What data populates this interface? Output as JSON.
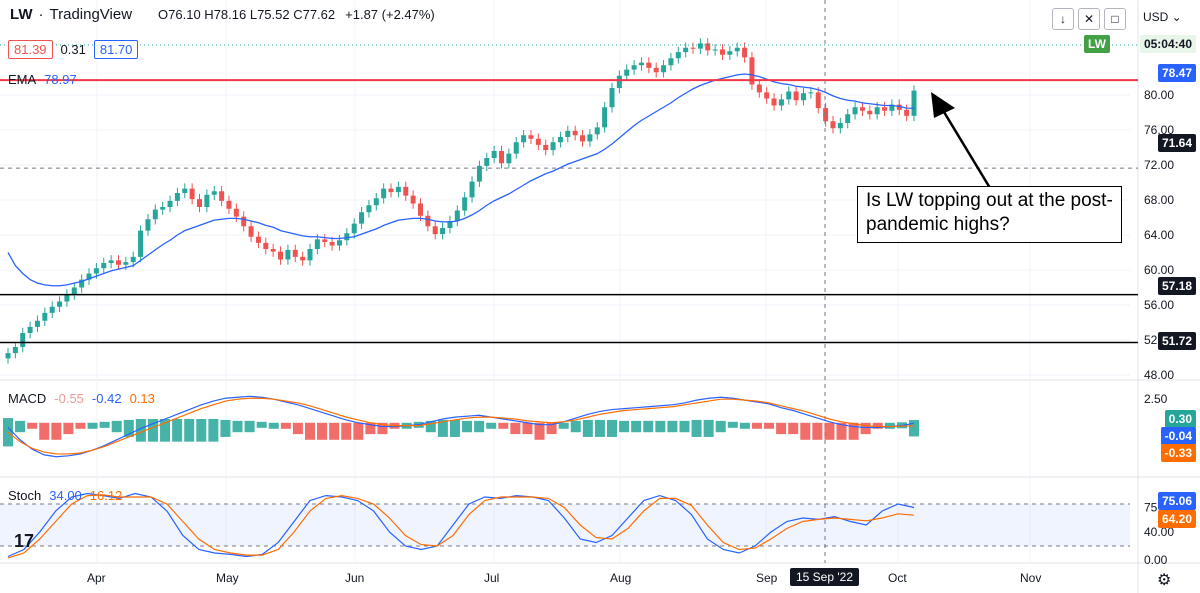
{
  "header": {
    "symbol": "LW",
    "source": "TradingView",
    "ohlc": "O76.10 H78.16 L75.52 C77.62",
    "change": "+1.87 (+2.47%)",
    "bid": "81.39",
    "spread": "0.31",
    "ask": "81.70"
  },
  "ema_label": "EMA",
  "ema_value": "78.97",
  "macd_label": "MACD",
  "macd_vals": [
    "-0.55",
    "-0.42",
    "0.13"
  ],
  "stoch_label": "Stoch",
  "stoch_vals": [
    "34.00",
    "16.12"
  ],
  "currency": "USD",
  "callout": "Is LW topping out at the post-pandemic highs?",
  "tags": {
    "lw_label": "LW",
    "lw_time": "05:04:40",
    "ema_tag": "78.47",
    "crosshair_price": "71.64",
    "support1": "57.18",
    "support2": "51.72",
    "macd_hist": "0.30",
    "macd_line": "-0.04",
    "macd_signal": "-0.33",
    "stoch_k": "75.06",
    "stoch_d": "64.20",
    "crosshair_date": "15 Sep '22"
  },
  "icons": [
    "arrow-down-icon",
    "collapse-icon",
    "fullscreen-icon",
    "settings-icon",
    "tradingview-logo-icon"
  ],
  "colors": {
    "up": "#26a69a",
    "down": "#ef5350",
    "ema": "#2962ff",
    "macd": "#2962ff",
    "signal": "#ff6d00",
    "resistance": "#f23645"
  },
  "chart_data": [
    {
      "type": "candlestick",
      "title": "LW",
      "ylabel": "USD",
      "ylim": [
        48,
        88
      ],
      "y_ticks": [
        48.0,
        52.0,
        56.0,
        60.0,
        64.0,
        68.0,
        72.0,
        76.0,
        80.0
      ],
      "x_ticks": [
        "Apr",
        "May",
        "Jun",
        "Jul",
        "Aug",
        "Sep",
        "Oct",
        "Nov"
      ],
      "horizontal_lines": [
        81.7,
        57.18,
        51.72
      ],
      "last_close": 77.62,
      "ema_last": 78.47,
      "closes": [
        50.5,
        51.2,
        52.8,
        53.5,
        54.2,
        55.1,
        55.8,
        56.4,
        57.2,
        58.0,
        58.9,
        59.6,
        60.2,
        60.8,
        61.1,
        60.6,
        60.9,
        61.5,
        64.5,
        65.8,
        66.9,
        67.2,
        67.9,
        68.8,
        69.3,
        68.1,
        67.2,
        68.6,
        69.0,
        67.9,
        67.0,
        66.1,
        65.0,
        63.8,
        63.1,
        62.4,
        62.1,
        61.2,
        62.3,
        61.5,
        61.1,
        62.4,
        63.5,
        63.2,
        62.8,
        63.4,
        64.2,
        65.3,
        66.6,
        67.4,
        68.2,
        69.3,
        68.9,
        69.5,
        68.5,
        67.6,
        66.2,
        65.0,
        64.1,
        64.8,
        65.6,
        66.8,
        68.3,
        70.1,
        71.9,
        72.8,
        73.6,
        72.2,
        73.3,
        74.6,
        75.4,
        75.0,
        74.3,
        73.7,
        74.6,
        75.2,
        75.9,
        75.4,
        74.7,
        75.5,
        76.3,
        78.6,
        80.8,
        82.2,
        82.9,
        83.4,
        83.7,
        83.1,
        82.6,
        83.4,
        84.2,
        84.9,
        85.4,
        85.3,
        85.9,
        85.1,
        85.2,
        84.6,
        85.0,
        85.4,
        84.3,
        81.2,
        80.3,
        79.6,
        78.8,
        79.5,
        80.4,
        79.4,
        80.2,
        80.3,
        78.5,
        77.0,
        76.2,
        76.8,
        77.8,
        78.6,
        78.2,
        77.8,
        78.6,
        78.2,
        78.9,
        78.3,
        77.62,
        80.5
      ],
      "ema": [
        62.0,
        60.5,
        59.6,
        58.9,
        58.5,
        58.3,
        58.2,
        58.2,
        58.3,
        58.5,
        58.7,
        59.0,
        59.3,
        59.6,
        59.9,
        60.1,
        60.3,
        60.5,
        61.1,
        61.7,
        62.3,
        62.9,
        63.4,
        64.0,
        64.5,
        64.8,
        65.1,
        65.4,
        65.7,
        65.8,
        65.9,
        65.9,
        65.8,
        65.6,
        65.4,
        65.1,
        64.9,
        64.5,
        64.3,
        64.1,
        63.9,
        63.8,
        63.8,
        63.7,
        63.6,
        63.6,
        63.7,
        63.8,
        64.1,
        64.4,
        64.7,
        65.1,
        65.4,
        65.7,
        65.8,
        65.9,
        65.9,
        65.8,
        65.6,
        65.5,
        65.5,
        65.6,
        65.9,
        66.3,
        66.8,
        67.4,
        67.9,
        68.3,
        68.7,
        69.2,
        69.7,
        70.2,
        70.6,
        71.0,
        71.3,
        71.7,
        72.1,
        72.4,
        72.7,
        73.0,
        73.3,
        73.8,
        74.4,
        75.1,
        75.8,
        76.5,
        77.1,
        77.6,
        78.1,
        78.6,
        79.1,
        79.7,
        80.2,
        80.7,
        81.1,
        81.4,
        81.7,
        81.9,
        82.1,
        82.3,
        82.4,
        82.3,
        82.1,
        81.8,
        81.5,
        81.3,
        81.2,
        81.0,
        80.9,
        80.8,
        80.6,
        80.3,
        79.9,
        79.6,
        79.4,
        79.3,
        79.1,
        79.0,
        78.9,
        78.8,
        78.8,
        78.7,
        78.5,
        78.47
      ]
    },
    {
      "type": "line",
      "title": "MACD",
      "ylim": [
        -5,
        4
      ],
      "y_ticks": [
        2.5
      ],
      "series": [
        {
          "name": "MACD",
          "values": [
            -0.5,
            -1.8,
            -2.8,
            -3.4,
            -3.6,
            -3.5,
            -3.3,
            -2.9,
            -2.4,
            -1.8,
            -1.2,
            -0.6,
            -0.1,
            0.4,
            0.9,
            1.4,
            1.9,
            2.3,
            2.6,
            2.7,
            2.8,
            2.7,
            2.5,
            2.2,
            1.9,
            1.5,
            1.1,
            0.7,
            0.3,
            0.0,
            -0.2,
            -0.4,
            -0.4,
            -0.3,
            -0.2,
            0.1,
            0.4,
            0.6,
            0.7,
            0.8,
            0.6,
            0.4,
            0.2,
            0.0,
            -0.2,
            -0.2,
            0.1,
            0.5,
            0.9,
            1.2,
            1.4,
            1.5,
            1.6,
            1.7,
            1.8,
            1.9,
            2.1,
            2.4,
            2.6,
            2.7,
            2.6,
            2.4,
            2.2,
            2.0,
            1.6,
            1.3,
            0.9,
            0.5,
            0.1,
            -0.2,
            -0.4,
            -0.5,
            -0.5,
            -0.4,
            -0.3,
            -0.04
          ]
        },
        {
          "name": "Signal",
          "values": [
            -1.0,
            -2.0,
            -2.7,
            -3.1,
            -3.3,
            -3.3,
            -3.2,
            -2.9,
            -2.5,
            -2.0,
            -1.5,
            -1.0,
            -0.5,
            0.0,
            0.5,
            1.0,
            1.5,
            1.9,
            2.3,
            2.5,
            2.6,
            2.6,
            2.5,
            2.3,
            2.1,
            1.8,
            1.4,
            1.0,
            0.6,
            0.3,
            0.0,
            -0.2,
            -0.3,
            -0.3,
            -0.3,
            -0.1,
            0.1,
            0.3,
            0.5,
            0.6,
            0.6,
            0.5,
            0.4,
            0.2,
            0.1,
            0.0,
            0.1,
            0.3,
            0.6,
            0.9,
            1.1,
            1.3,
            1.4,
            1.5,
            1.6,
            1.7,
            1.9,
            2.1,
            2.3,
            2.5,
            2.5,
            2.4,
            2.3,
            2.1,
            1.8,
            1.5,
            1.2,
            0.8,
            0.4,
            0.1,
            -0.1,
            -0.3,
            -0.4,
            -0.4,
            -0.35,
            -0.33
          ]
        }
      ]
    },
    {
      "type": "line",
      "title": "Stoch",
      "ylim": [
        0,
        100
      ],
      "y_ticks": [
        0,
        40,
        75
      ],
      "series": [
        {
          "name": "%K",
          "values": [
            5,
            15,
            40,
            70,
            90,
            95,
            92,
            88,
            95,
            90,
            70,
            35,
            15,
            10,
            8,
            5,
            8,
            25,
            55,
            85,
            92,
            90,
            85,
            70,
            40,
            20,
            15,
            20,
            50,
            80,
            90,
            88,
            92,
            90,
            85,
            60,
            30,
            25,
            35,
            60,
            85,
            92,
            85,
            65,
            30,
            15,
            10,
            20,
            40,
            55,
            60,
            58,
            62,
            55,
            50,
            70,
            80,
            75
          ]
        },
        {
          "name": "%D",
          "values": [
            3,
            10,
            30,
            55,
            80,
            92,
            93,
            90,
            90,
            90,
            80,
            55,
            30,
            15,
            10,
            7,
            7,
            15,
            40,
            70,
            88,
            92,
            88,
            80,
            60,
            35,
            22,
            20,
            35,
            65,
            85,
            90,
            90,
            90,
            88,
            75,
            50,
            32,
            30,
            45,
            70,
            88,
            88,
            78,
            50,
            25,
            15,
            17,
            30,
            45,
            55,
            58,
            60,
            58,
            56,
            60,
            66,
            64
          ]
        }
      ]
    }
  ]
}
